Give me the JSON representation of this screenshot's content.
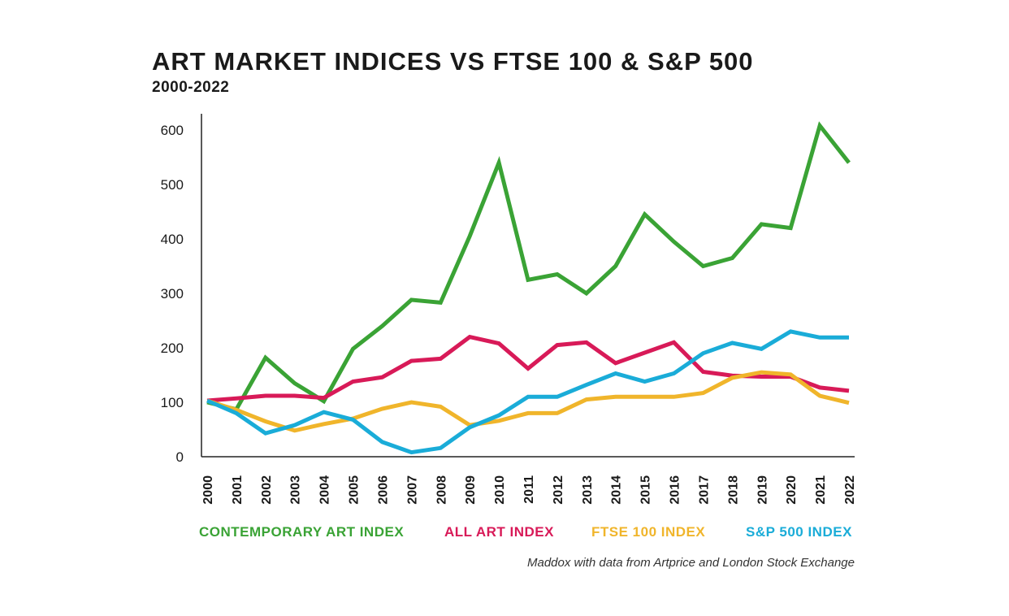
{
  "chart_data": {
    "type": "line",
    "title": "ART MARKET INDICES VS FTSE 100 & S&P 500",
    "subtitle": "2000-2022",
    "xlabel": "",
    "ylabel": "",
    "ylim": [
      0,
      600
    ],
    "yticks": [
      0,
      100,
      200,
      300,
      400,
      500,
      600
    ],
    "x": [
      "2000",
      "2001",
      "2002",
      "2003",
      "2004",
      "2005",
      "2006",
      "2007",
      "2008",
      "2009",
      "2010",
      "2011",
      "2012",
      "2013",
      "2014",
      "2015",
      "2016",
      "2017",
      "2018",
      "2019",
      "2020",
      "2021",
      "2022"
    ],
    "series": [
      {
        "name": "CONTEMPORARY ART INDEX",
        "color": "#3aa335",
        "values": [
          100,
          87,
          182,
          135,
          102,
          198,
          240,
          288,
          283,
          405,
          540,
          325,
          335,
          300,
          350,
          445,
          395,
          350,
          365,
          427,
          420,
          608,
          540
        ]
      },
      {
        "name": "ALL ART INDEX",
        "color": "#d81a58",
        "values": [
          103,
          107,
          112,
          112,
          108,
          138,
          146,
          176,
          180,
          220,
          208,
          162,
          205,
          210,
          172,
          191,
          210,
          156,
          149,
          147,
          147,
          127,
          121
        ]
      },
      {
        "name": "FTSE 100 INDEX",
        "color": "#f0b52b",
        "values": [
          103,
          86,
          65,
          48,
          60,
          70,
          88,
          100,
          92,
          58,
          66,
          80,
          80,
          105,
          110,
          110,
          110,
          117,
          145,
          155,
          151,
          112,
          99
        ]
      },
      {
        "name": "S&P 500 INDEX",
        "color": "#1aacd8",
        "values": [
          103,
          80,
          43,
          58,
          82,
          68,
          27,
          8,
          16,
          54,
          76,
          110,
          110,
          132,
          153,
          138,
          153,
          190,
          209,
          198,
          230,
          219,
          219
        ]
      }
    ],
    "legend_position": "bottom",
    "source": "Maddox with data from Artprice and London Stock Exchange"
  }
}
